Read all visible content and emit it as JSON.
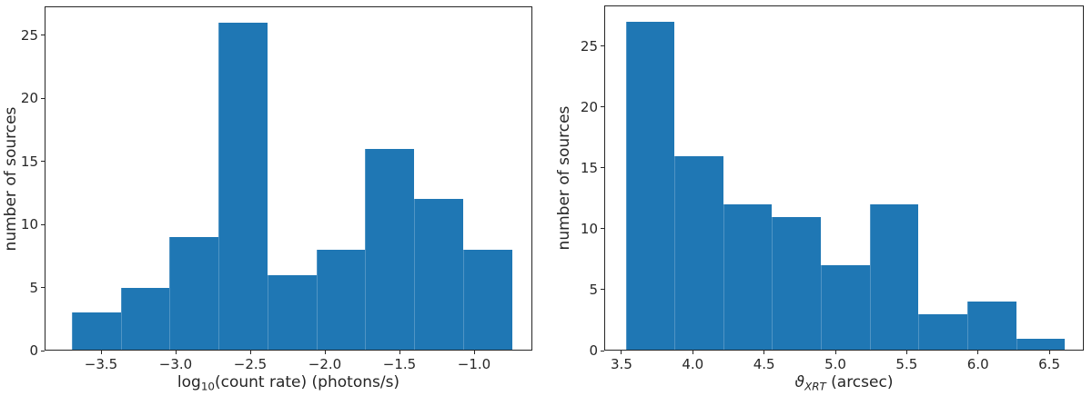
{
  "figure": {
    "background": "#ffffff",
    "bar_color": "#1f77b4",
    "axis_color": "#262626",
    "text_color": "#262626"
  },
  "chart_data": [
    {
      "type": "bar",
      "subtype": "histogram",
      "title": "",
      "xlabel": "log10(count rate) (photons/s)",
      "xlabel_parts": [
        {
          "text": "log"
        },
        {
          "text": "10",
          "sub": true
        },
        {
          "text": "(count rate) (photons/s)"
        }
      ],
      "ylabel": "number of sources",
      "bin_edges": [
        -3.695,
        -3.367,
        -3.04,
        -2.712,
        -2.384,
        -2.057,
        -1.729,
        -1.401,
        -1.074,
        -0.746
      ],
      "counts": [
        3,
        5,
        9,
        26,
        6,
        8,
        16,
        12,
        8
      ],
      "total_sources": 93,
      "xlim": [
        -3.878,
        -0.61
      ],
      "ylim": [
        0,
        27.3
      ],
      "grid": false,
      "legend": null,
      "xticks": [
        {
          "v": -3.5,
          "label": "−3.5"
        },
        {
          "v": -3.0,
          "label": "−3.0"
        },
        {
          "v": -2.5,
          "label": "−2.5"
        },
        {
          "v": -2.0,
          "label": "−2.0"
        },
        {
          "v": -1.5,
          "label": "−1.5"
        },
        {
          "v": -1.0,
          "label": "−1.0"
        }
      ],
      "yticks": [
        {
          "v": 0,
          "label": "0"
        },
        {
          "v": 5,
          "label": "5"
        },
        {
          "v": 10,
          "label": "10"
        },
        {
          "v": 15,
          "label": "15"
        },
        {
          "v": 20,
          "label": "20"
        },
        {
          "v": 25,
          "label": "25"
        }
      ]
    },
    {
      "type": "bar",
      "subtype": "histogram",
      "title": "",
      "xlabel": "ϑ_XRT (arcsec)",
      "xlabel_parts": [
        {
          "text": "ϑ",
          "italic": true
        },
        {
          "text": "XRT",
          "sub": true,
          "italic": true
        },
        {
          "text": " (arcsec)"
        }
      ],
      "ylabel": "number of sources",
      "bin_edges": [
        3.53,
        3.872,
        4.214,
        4.556,
        4.898,
        5.241,
        5.583,
        5.925,
        6.267,
        6.609
      ],
      "counts": [
        27,
        16,
        12,
        11,
        7,
        12,
        3,
        4,
        1
      ],
      "total_sources": 93,
      "xlim": [
        3.379,
        6.742
      ],
      "ylim": [
        0,
        28.35
      ],
      "grid": false,
      "legend": null,
      "xticks": [
        {
          "v": 3.5,
          "label": "3.5"
        },
        {
          "v": 4.0,
          "label": "4.0"
        },
        {
          "v": 4.5,
          "label": "4.5"
        },
        {
          "v": 5.0,
          "label": "5.0"
        },
        {
          "v": 5.5,
          "label": "5.5"
        },
        {
          "v": 6.0,
          "label": "6.0"
        },
        {
          "v": 6.5,
          "label": "6.5"
        }
      ],
      "yticks": [
        {
          "v": 0,
          "label": "0"
        },
        {
          "v": 5,
          "label": "5"
        },
        {
          "v": 10,
          "label": "10"
        },
        {
          "v": 15,
          "label": "15"
        },
        {
          "v": 20,
          "label": "20"
        },
        {
          "v": 25,
          "label": "25"
        }
      ]
    }
  ]
}
